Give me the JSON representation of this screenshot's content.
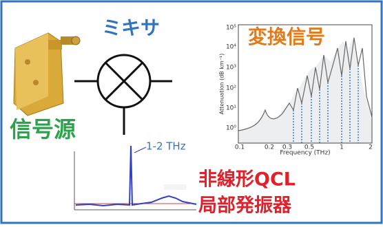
{
  "labels": {
    "mixer": "ミキサ",
    "converted_signal": "変換信号",
    "signal_source": "信号源",
    "frequency_note": "1-2 THz",
    "lo_line1": "非線形QCL",
    "lo_line2": "局部発振器"
  },
  "attenuation_plot": {
    "y_axis_label": "Attenuation (dB km⁻¹)",
    "x_axis_label": "Frequency (THz)",
    "y_tick_labels": [
      "10⁵",
      "10⁴",
      "10³",
      "10²",
      "10¹",
      "10⁰"
    ],
    "x_tick_labels": [
      "0.1",
      "0.2",
      "0.3",
      "0.5",
      "1",
      "2"
    ]
  }
}
